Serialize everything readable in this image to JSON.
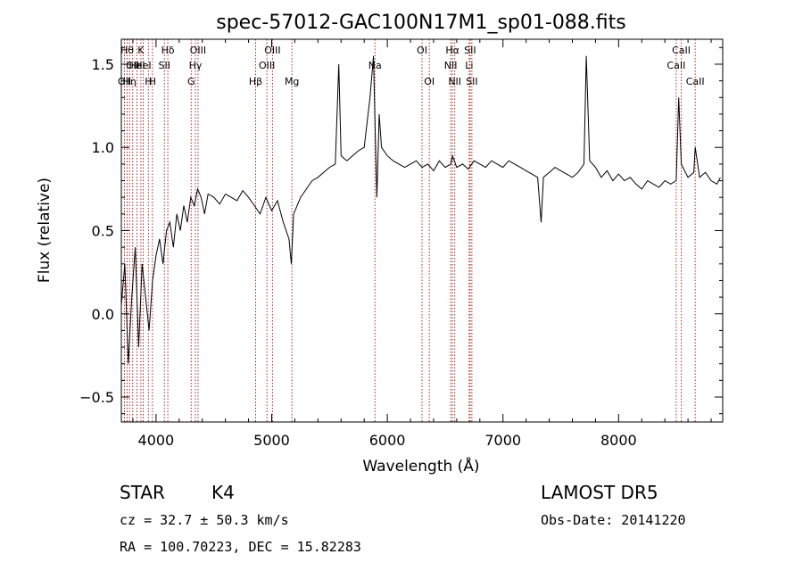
{
  "chart_data": {
    "type": "line",
    "title": "spec-57012-GAC100N17M1_sp01-088.fits",
    "xlabel": "Wavelength (Å)",
    "ylabel": "Flux (relative)",
    "xlim": [
      3700,
      8900
    ],
    "ylim": [
      -0.65,
      1.65
    ],
    "xticks": [
      4000,
      5000,
      6000,
      7000,
      8000
    ],
    "xtick_labels": [
      "4000",
      "5000",
      "6000",
      "7000",
      "8000"
    ],
    "yticks": [
      -0.5,
      0.0,
      0.5,
      1.0,
      1.5
    ],
    "ytick_labels": [
      "−0.5",
      "0.0",
      "0.5",
      "1.0",
      "1.5"
    ],
    "grid": false,
    "line_color": "#000000",
    "marker_color": "#a52a2a",
    "series": [
      {
        "x": [
          3700,
          3730,
          3760,
          3790,
          3820,
          3850,
          3880,
          3910,
          3940,
          3970,
          4000,
          4030,
          4060,
          4090,
          4120,
          4150,
          4180,
          4210,
          4240,
          4270,
          4300,
          4330,
          4360,
          4390,
          4420,
          4450,
          4500,
          4550,
          4600,
          4650,
          4700,
          4750,
          4800,
          4850,
          4900,
          4950,
          5000,
          5050,
          5100,
          5150,
          5170,
          5190,
          5250,
          5300,
          5350,
          5400,
          5450,
          5500,
          5550,
          5580,
          5600,
          5650,
          5700,
          5750,
          5800,
          5850,
          5880,
          5895,
          5910,
          5930,
          5950,
          6000,
          6050,
          6100,
          6150,
          6200,
          6250,
          6300,
          6350,
          6400,
          6450,
          6500,
          6550,
          6563,
          6600,
          6650,
          6700,
          6750,
          6800,
          6850,
          6900,
          6950,
          7000,
          7050,
          7100,
          7150,
          7200,
          7250,
          7300,
          7330,
          7350,
          7400,
          7450,
          7500,
          7550,
          7600,
          7650,
          7700,
          7720,
          7750,
          7800,
          7850,
          7900,
          7950,
          8000,
          8050,
          8100,
          8150,
          8200,
          8250,
          8300,
          8350,
          8400,
          8450,
          8498,
          8520,
          8542,
          8600,
          8650,
          8662,
          8700,
          8750,
          8800,
          8850,
          8880
        ],
        "y": [
          0.05,
          0.3,
          -0.3,
          0.1,
          0.4,
          -0.2,
          0.3,
          0.1,
          -0.1,
          0.2,
          0.35,
          0.45,
          0.3,
          0.5,
          0.55,
          0.4,
          0.6,
          0.5,
          0.65,
          0.55,
          0.7,
          0.65,
          0.75,
          0.7,
          0.6,
          0.72,
          0.7,
          0.66,
          0.72,
          0.7,
          0.68,
          0.74,
          0.7,
          0.65,
          0.6,
          0.7,
          0.62,
          0.68,
          0.55,
          0.45,
          0.3,
          0.6,
          0.7,
          0.75,
          0.8,
          0.82,
          0.85,
          0.88,
          0.9,
          1.5,
          0.95,
          0.92,
          0.95,
          0.98,
          1.0,
          1.3,
          1.55,
          1.1,
          0.7,
          1.2,
          1.0,
          0.95,
          0.92,
          0.9,
          0.88,
          0.9,
          0.92,
          0.88,
          0.9,
          0.86,
          0.92,
          0.88,
          0.9,
          0.95,
          0.88,
          0.9,
          0.87,
          0.92,
          0.9,
          0.88,
          0.92,
          0.9,
          0.88,
          0.92,
          0.9,
          0.88,
          0.86,
          0.84,
          0.82,
          0.55,
          0.82,
          0.85,
          0.88,
          0.86,
          0.84,
          0.82,
          0.85,
          0.9,
          1.55,
          0.92,
          0.88,
          0.82,
          0.86,
          0.8,
          0.84,
          0.8,
          0.82,
          0.78,
          0.75,
          0.8,
          0.78,
          0.76,
          0.8,
          0.78,
          0.8,
          1.3,
          0.9,
          0.82,
          0.85,
          1.0,
          0.82,
          0.85,
          0.8,
          0.78,
          0.82
        ]
      }
    ],
    "lines": [
      {
        "wavelength": 3727,
        "row": 3,
        "label": "OII"
      },
      {
        "wavelength": 3750,
        "row": 1,
        "label": "Hθ"
      },
      {
        "wavelength": 3771,
        "row": 3,
        "label": "Hη"
      },
      {
        "wavelength": 3798,
        "row": 2,
        "label": "OII"
      },
      {
        "wavelength": 3835,
        "row": 2,
        "label": "HeI"
      },
      {
        "wavelength": 3869,
        "row": 1,
        "label": "K"
      },
      {
        "wavelength": 3889,
        "row": 2,
        "label": "HeI"
      },
      {
        "wavelength": 3934,
        "row": 3,
        "label": "H"
      },
      {
        "wavelength": 3969,
        "row": 3,
        "label": "H"
      },
      {
        "wavelength": 4072,
        "row": 2,
        "label": "SII"
      },
      {
        "wavelength": 4102,
        "row": 1,
        "label": "Hδ"
      },
      {
        "wavelength": 4304,
        "row": 3,
        "label": "G"
      },
      {
        "wavelength": 4340,
        "row": 2,
        "label": "Hγ"
      },
      {
        "wavelength": 4363,
        "row": 1,
        "label": "OIII"
      },
      {
        "wavelength": 4861,
        "row": 3,
        "label": "Hβ"
      },
      {
        "wavelength": 4959,
        "row": 2,
        "label": "OIII"
      },
      {
        "wavelength": 5007,
        "row": 1,
        "label": "OIII"
      },
      {
        "wavelength": 5175,
        "row": 3,
        "label": "Mg"
      },
      {
        "wavelength": 5893,
        "row": 2,
        "label": "Na"
      },
      {
        "wavelength": 6300,
        "row": 1,
        "label": "OI"
      },
      {
        "wavelength": 6363,
        "row": 3,
        "label": "OI"
      },
      {
        "wavelength": 6548,
        "row": 2,
        "label": "NII"
      },
      {
        "wavelength": 6563,
        "row": 1,
        "label": "Hα"
      },
      {
        "wavelength": 6583,
        "row": 3,
        "label": "NII"
      },
      {
        "wavelength": 6708,
        "row": 2,
        "label": "Li"
      },
      {
        "wavelength": 6716,
        "row": 1,
        "label": "SII"
      },
      {
        "wavelength": 6731,
        "row": 3,
        "label": "SII"
      },
      {
        "wavelength": 8498,
        "row": 2,
        "label": "CaII"
      },
      {
        "wavelength": 8542,
        "row": 1,
        "label": "CaII"
      },
      {
        "wavelength": 8662,
        "row": 3,
        "label": "CaII"
      }
    ]
  },
  "info": {
    "class_label": "STAR",
    "subclass_label": "K4",
    "survey_label": "LAMOST DR5",
    "cz_text": "cz = 32.7 ± 50.3 km/s",
    "obs_date_text": "Obs-Date: 20141220",
    "coords_text": "RA = 100.70223, DEC =  15.82283"
  }
}
